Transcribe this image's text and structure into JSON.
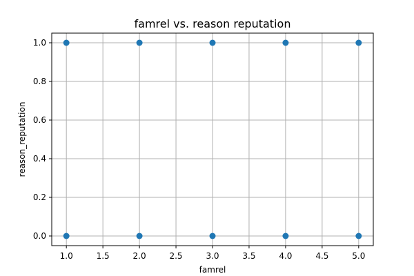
{
  "chart_data": {
    "type": "scatter",
    "title": "famrel vs. reason reputation",
    "xlabel": "famrel",
    "ylabel": "reason_reputation",
    "xlim": [
      0.8,
      5.2
    ],
    "ylim": [
      -0.05,
      1.05
    ],
    "xticks": [
      "1.0",
      "1.5",
      "2.0",
      "2.5",
      "3.0",
      "3.5",
      "4.0",
      "4.5",
      "5.0"
    ],
    "yticks": [
      "0.0",
      "0.2",
      "0.4",
      "0.6",
      "0.8",
      "1.0"
    ],
    "grid": true,
    "marker_color": "#1f77b4",
    "points": [
      {
        "x": 1,
        "y": 1
      },
      {
        "x": 2,
        "y": 1
      },
      {
        "x": 3,
        "y": 1
      },
      {
        "x": 4,
        "y": 1
      },
      {
        "x": 5,
        "y": 1
      },
      {
        "x": 1,
        "y": 0
      },
      {
        "x": 2,
        "y": 0
      },
      {
        "x": 3,
        "y": 0
      },
      {
        "x": 4,
        "y": 0
      },
      {
        "x": 5,
        "y": 0
      }
    ]
  }
}
